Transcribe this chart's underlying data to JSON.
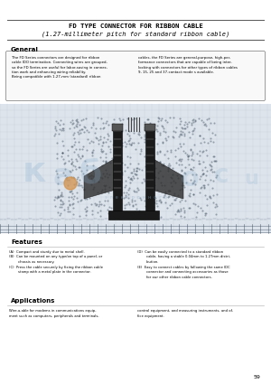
{
  "title_line1": "FD TYPE CONNECTOR FOR RIBBON CABLE",
  "title_line2": "(1.27-millimeter pitch for standard ribbon cable)",
  "section_general": "General",
  "general_text_left": "The FD Series connectors are designed for ribbon\ncable IDO termination. Connecting wires are grouped,\nso the FD Series are useful for labor-saving in connec-\ntion work and enhancing wiring reliability.\nBeing compatible with 1.27-mm (standard) ribbon",
  "general_text_right": "cables, the FD Series are general-purpose, high-per-\nformance connectors that are capable of being inter-\nlocking with connectors for other types of ribbon cables\n9, 15, 25 and 37-contact mode s available.",
  "section_features": "Features",
  "features_A": "(A)  Compact and sturdy due to metal shell.",
  "features_B": "(B)  Can be mounted on any type/on top of a panel, or\n        chassis as necessary.",
  "features_C": "(C)  Press the cable securely by fixing the ribbon cable\n        stamp with a metal plate in the connector.",
  "features_D": "(D)  Can be easily connected to a standard ribbon\n        cable, having a stable 0.04mm to 1.27mm distri-\n        bution.",
  "features_E": "(E)  Easy to connect cables by following the same IDC\n        connector and connecting accessories as those\n        for our other ribbon cable connectors.",
  "section_applications": "Applications",
  "applications_left": "Wire-a-able for modems in communications equip-\nment such as computers, peripherals and terminals,",
  "applications_right": "control equipment, and measuring instruments, and of-\nfice equipment.",
  "page_number": "59",
  "bg_color": "#ffffff",
  "text_color": "#000000",
  "line_color": "#555555",
  "box_edge_color": "#777777",
  "box_face_color": "#f9f9f9",
  "img_bg_color": "#dde4ec",
  "img_grid_color": "#b0bcc8",
  "connector_dark": "#1a1a1a",
  "connector_mid": "#444444",
  "connector_light": "#888888",
  "wm_blue": "#8ab0d0",
  "wm_orange": "#d4924a"
}
